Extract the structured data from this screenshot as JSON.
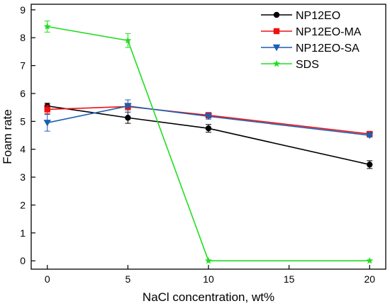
{
  "chart_data": {
    "type": "line",
    "xlabel": "NaCl concentration, wt%",
    "ylabel": "Foam rate",
    "xlim": [
      -1,
      21
    ],
    "ylim": [
      -0.3,
      9.2
    ],
    "x_ticks": [
      0,
      5,
      10,
      15,
      20
    ],
    "y_ticks": [
      0,
      1,
      2,
      3,
      4,
      5,
      6,
      7,
      8,
      9
    ],
    "legend_position": "top-right",
    "series": [
      {
        "name": "NP12EO",
        "color": "#000000",
        "marker": "circle",
        "x": [
          0,
          5,
          10,
          20
        ],
        "y": [
          5.55,
          5.13,
          4.75,
          3.45
        ],
        "err": [
          0.1,
          0.2,
          0.14,
          0.14
        ]
      },
      {
        "name": "NP12EO-MA",
        "color": "#ee1111",
        "marker": "square",
        "x": [
          0,
          5,
          10,
          20
        ],
        "y": [
          5.43,
          5.53,
          5.22,
          4.55
        ],
        "err": [
          0.15,
          0.12,
          0.1,
          0.06
        ]
      },
      {
        "name": "NP12EO-SA",
        "color": "#1a5fb4",
        "marker": "triangle-down",
        "x": [
          0,
          5,
          10,
          20
        ],
        "y": [
          4.95,
          5.55,
          5.18,
          4.5
        ],
        "err": [
          0.3,
          0.22,
          0.1,
          0.07
        ]
      },
      {
        "name": "SDS",
        "color": "#22dd22",
        "marker": "star",
        "x": [
          0,
          5,
          10,
          20
        ],
        "y": [
          8.4,
          7.9,
          0.0,
          0.0
        ],
        "err": [
          0.2,
          0.25,
          0.0,
          0.0
        ]
      }
    ]
  }
}
